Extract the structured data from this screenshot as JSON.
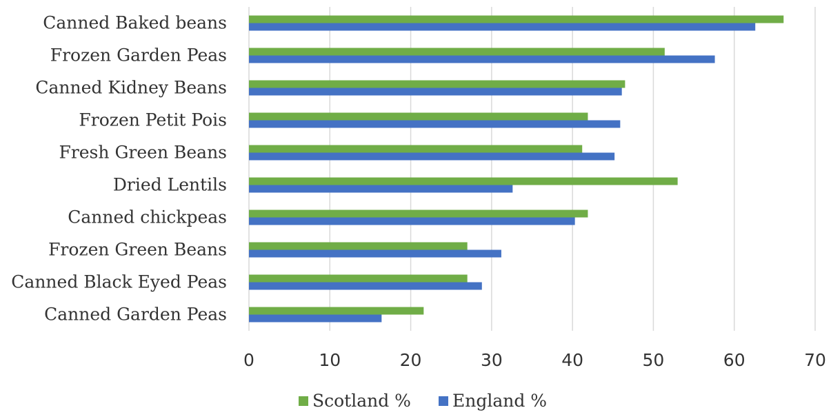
{
  "chart_data": {
    "type": "bar",
    "orientation": "horizontal",
    "categories": [
      "Canned Baked beans",
      "Frozen Garden Peas",
      "Canned Kidney Beans",
      "Frozen Petit Pois",
      "Fresh Green Beans",
      "Dried Lentils",
      "Canned chickpeas",
      "Frozen Green Beans",
      "Canned Black Eyed Peas",
      "Canned Garden Peas"
    ],
    "series": [
      {
        "name": "Scotland %",
        "color": "#70ad47",
        "values": [
          66.1,
          51.4,
          46.5,
          41.9,
          41.2,
          53.0,
          41.9,
          27.0,
          27.0,
          21.6
        ]
      },
      {
        "name": "England %",
        "color": "#4472c4",
        "values": [
          62.6,
          57.6,
          46.1,
          45.9,
          45.2,
          32.6,
          40.3,
          31.2,
          28.8,
          16.4
        ]
      }
    ],
    "xlim": [
      0,
      70
    ],
    "xticks": [
      0,
      10,
      20,
      30,
      40,
      50,
      60,
      70
    ],
    "grid": "vertical",
    "legend": "bottom",
    "title": "",
    "xlabel": "",
    "ylabel": ""
  }
}
